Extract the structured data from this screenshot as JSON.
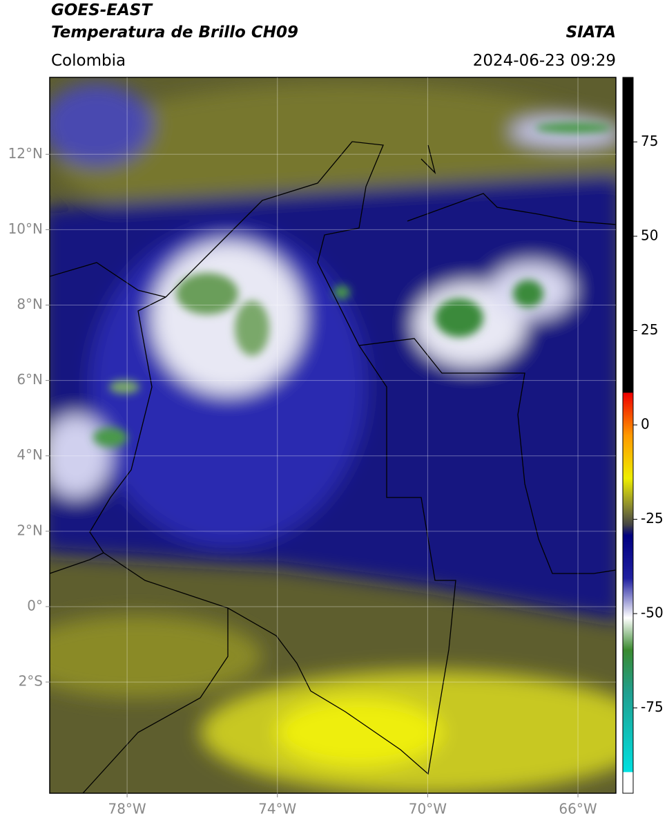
{
  "header": {
    "title": "GOES-EAST",
    "subtitle": "Temperatura de Brillo CH09",
    "source": "SIATA",
    "region": "Colombia",
    "datetime": "2024-06-23 09:29"
  },
  "map": {
    "xlim": [
      -80.06,
      -64.99
    ],
    "ylim": [
      -4.95,
      14.04
    ],
    "xticks": [
      {
        "value": -78,
        "label": "78°W"
      },
      {
        "value": -74,
        "label": "74°W"
      },
      {
        "value": -70,
        "label": "70°W"
      },
      {
        "value": -66,
        "label": "66°W"
      }
    ],
    "yticks": [
      {
        "value": 12,
        "label": "12°N"
      },
      {
        "value": 10,
        "label": "10°N"
      },
      {
        "value": 8,
        "label": "8°N"
      },
      {
        "value": 6,
        "label": "6°N"
      },
      {
        "value": 4,
        "label": "4°N"
      },
      {
        "value": 2,
        "label": "2°N"
      },
      {
        "value": 0,
        "label": "0°"
      },
      {
        "value": -2,
        "label": "2°S"
      }
    ],
    "grid": true
  },
  "colorbar": {
    "lim": [
      -97.6,
      92.1
    ],
    "ticks": [
      75,
      50,
      25,
      0,
      -25,
      -50,
      -75
    ]
  }
}
